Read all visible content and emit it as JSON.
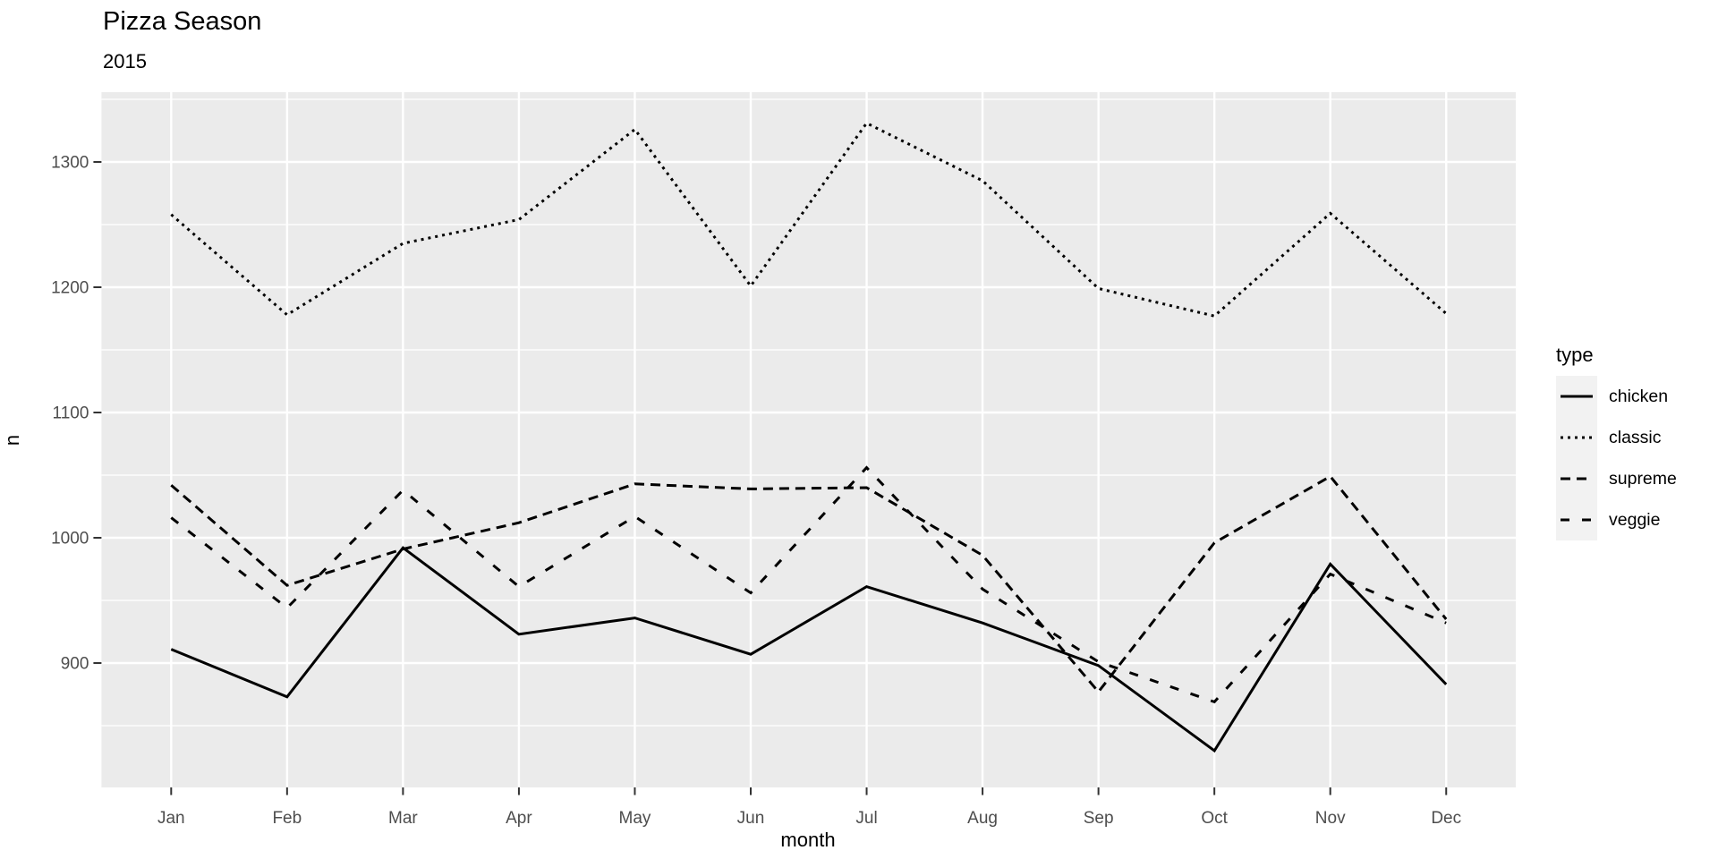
{
  "header": {
    "title": "Pizza Season",
    "subtitle": "2015"
  },
  "chart_data": {
    "type": "line",
    "title": "Pizza Season",
    "subtitle": "2015",
    "xlabel": "month",
    "ylabel": "n",
    "categories": [
      "Jan",
      "Feb",
      "Mar",
      "Apr",
      "May",
      "Jun",
      "Jul",
      "Aug",
      "Sep",
      "Oct",
      "Nov",
      "Dec"
    ],
    "y_ticks": [
      900,
      1000,
      1100,
      1200,
      1300
    ],
    "y_minor_ticks": [
      850,
      950,
      1050,
      1150,
      1250,
      1350
    ],
    "ylim": [
      805,
      1356
    ],
    "grid": true,
    "legend": {
      "title": "type",
      "position": "right"
    },
    "series": [
      {
        "name": "chicken",
        "linetype": "solid",
        "values": [
          911,
          873,
          992,
          923,
          936,
          907,
          961,
          932,
          898,
          830,
          979,
          883
        ]
      },
      {
        "name": "classic",
        "linetype": "dotted",
        "values": [
          1258,
          1178,
          1235,
          1254,
          1326,
          1201,
          1331,
          1285,
          1199,
          1177,
          1259,
          1179
        ]
      },
      {
        "name": "supreme",
        "linetype": "dashed",
        "values": [
          1042,
          962,
          991,
          1012,
          1043,
          1039,
          1040,
          986,
          877,
          996,
          1049,
          935
        ]
      },
      {
        "name": "veggie",
        "linetype": "longdash",
        "values": [
          1016,
          944,
          1038,
          961,
          1017,
          956,
          1056,
          959,
          901,
          869,
          971,
          932
        ]
      }
    ],
    "colors": {
      "panel_bg": "#EBEBEB",
      "grid": "#FFFFFF",
      "axis_text": "#4D4D4D",
      "line": "#000000",
      "legend_key_bg": "#F2F2F2",
      "tick": "#333333"
    }
  },
  "legend": {
    "title": "type",
    "items": [
      {
        "label": "chicken"
      },
      {
        "label": "classic"
      },
      {
        "label": "supreme"
      },
      {
        "label": "veggie"
      }
    ]
  }
}
